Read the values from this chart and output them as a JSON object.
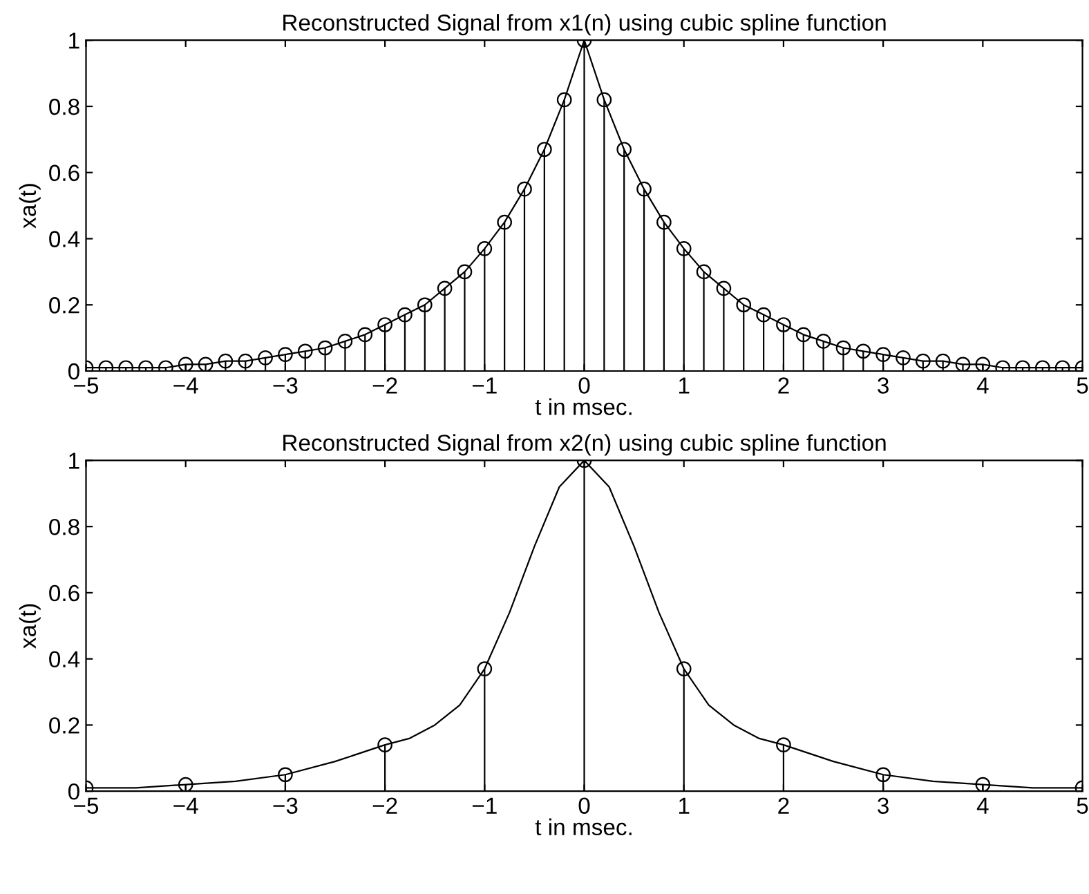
{
  "chart_data": [
    {
      "type": "lollipop",
      "title": "Reconstructed Signal from x1(n) using cubic spline function",
      "xlabel": "t in msec.",
      "ylabel": "xa(t)",
      "xlim": [
        -5,
        5
      ],
      "ylim": [
        0,
        1
      ],
      "xticks": [
        -5,
        -4,
        -3,
        -2,
        -1,
        0,
        1,
        2,
        3,
        4,
        5
      ],
      "yticks": [
        0,
        0.2,
        0.4,
        0.6,
        0.8,
        1
      ],
      "legend": false,
      "series": [
        {
          "marker": "circle",
          "color": "#000000",
          "x": [
            -5,
            -4.8,
            -4.6,
            -4.4,
            -4.2,
            -4,
            -3.8,
            -3.6,
            -3.4,
            -3.2,
            -3,
            -2.8,
            -2.6,
            -2.4,
            -2.2,
            -2,
            -1.8,
            -1.6,
            -1.4,
            -1.2,
            -1,
            -0.8,
            -0.6,
            -0.4,
            -0.2,
            0,
            0.2,
            0.4,
            0.6,
            0.8,
            1,
            1.2,
            1.4,
            1.6,
            1.8,
            2,
            2.2,
            2.4,
            2.6,
            2.8,
            3,
            3.2,
            3.4,
            3.6,
            3.8,
            4,
            4.2,
            4.4,
            4.6,
            4.8,
            5
          ],
          "values": [
            0.01,
            0.01,
            0.01,
            0.01,
            0.01,
            0.02,
            0.02,
            0.03,
            0.03,
            0.04,
            0.05,
            0.06,
            0.07,
            0.09,
            0.11,
            0.14,
            0.17,
            0.2,
            0.25,
            0.3,
            0.37,
            0.45,
            0.55,
            0.67,
            0.82,
            1,
            0.82,
            0.67,
            0.55,
            0.45,
            0.37,
            0.3,
            0.25,
            0.2,
            0.17,
            0.14,
            0.11,
            0.09,
            0.07,
            0.06,
            0.05,
            0.04,
            0.03,
            0.03,
            0.02,
            0.02,
            0.01,
            0.01,
            0.01,
            0.01,
            0.01
          ]
        },
        {
          "type": "line",
          "marker": "none",
          "color": "#000000",
          "x": [
            -5,
            -4.8,
            -4.6,
            -4.4,
            -4.2,
            -4,
            -3.8,
            -3.6,
            -3.4,
            -3.2,
            -3,
            -2.8,
            -2.6,
            -2.4,
            -2.2,
            -2,
            -1.8,
            -1.6,
            -1.4,
            -1.2,
            -1,
            -0.8,
            -0.6,
            -0.4,
            -0.2,
            0,
            0.2,
            0.4,
            0.6,
            0.8,
            1,
            1.2,
            1.4,
            1.6,
            1.8,
            2,
            2.2,
            2.4,
            2.6,
            2.8,
            3,
            3.2,
            3.4,
            3.6,
            3.8,
            4,
            4.2,
            4.4,
            4.6,
            4.8,
            5
          ],
          "values": [
            0.01,
            0.01,
            0.01,
            0.01,
            0.01,
            0.02,
            0.02,
            0.03,
            0.03,
            0.04,
            0.05,
            0.06,
            0.07,
            0.09,
            0.11,
            0.14,
            0.17,
            0.2,
            0.25,
            0.3,
            0.37,
            0.45,
            0.55,
            0.67,
            0.82,
            1,
            0.82,
            0.67,
            0.55,
            0.45,
            0.37,
            0.3,
            0.25,
            0.2,
            0.17,
            0.14,
            0.11,
            0.09,
            0.07,
            0.06,
            0.05,
            0.04,
            0.03,
            0.03,
            0.02,
            0.02,
            0.01,
            0.01,
            0.01,
            0.01,
            0.01
          ]
        }
      ]
    },
    {
      "type": "lollipop",
      "title": "Reconstructed Signal from x2(n) using cubic spline function",
      "xlabel": "t in msec.",
      "ylabel": "xa(t)",
      "xlim": [
        -5,
        5
      ],
      "ylim": [
        0,
        1
      ],
      "xticks": [
        -5,
        -4,
        -3,
        -2,
        -1,
        0,
        1,
        2,
        3,
        4,
        5
      ],
      "yticks": [
        0,
        0.2,
        0.4,
        0.6,
        0.8,
        1
      ],
      "legend": false,
      "series": [
        {
          "marker": "circle",
          "color": "#000000",
          "x": [
            -5,
            -4,
            -3,
            -2,
            -1,
            0,
            1,
            2,
            3,
            4,
            5
          ],
          "values": [
            0.01,
            0.02,
            0.05,
            0.14,
            0.37,
            1,
            0.37,
            0.14,
            0.05,
            0.02,
            0.01
          ]
        },
        {
          "type": "line",
          "marker": "none",
          "color": "#000000",
          "x": [
            -5,
            -4.5,
            -4,
            -3.5,
            -3,
            -2.5,
            -2,
            -1.75,
            -1.5,
            -1.25,
            -1,
            -0.75,
            -0.5,
            -0.25,
            0,
            0.25,
            0.5,
            0.75,
            1,
            1.25,
            1.5,
            1.75,
            2,
            2.5,
            3,
            3.5,
            4,
            4.5,
            5
          ],
          "values": [
            0.01,
            0.01,
            0.02,
            0.03,
            0.05,
            0.09,
            0.14,
            0.16,
            0.2,
            0.26,
            0.37,
            0.54,
            0.74,
            0.92,
            1,
            0.92,
            0.74,
            0.54,
            0.37,
            0.26,
            0.2,
            0.16,
            0.14,
            0.09,
            0.05,
            0.03,
            0.02,
            0.01,
            0.01
          ]
        }
      ]
    }
  ]
}
